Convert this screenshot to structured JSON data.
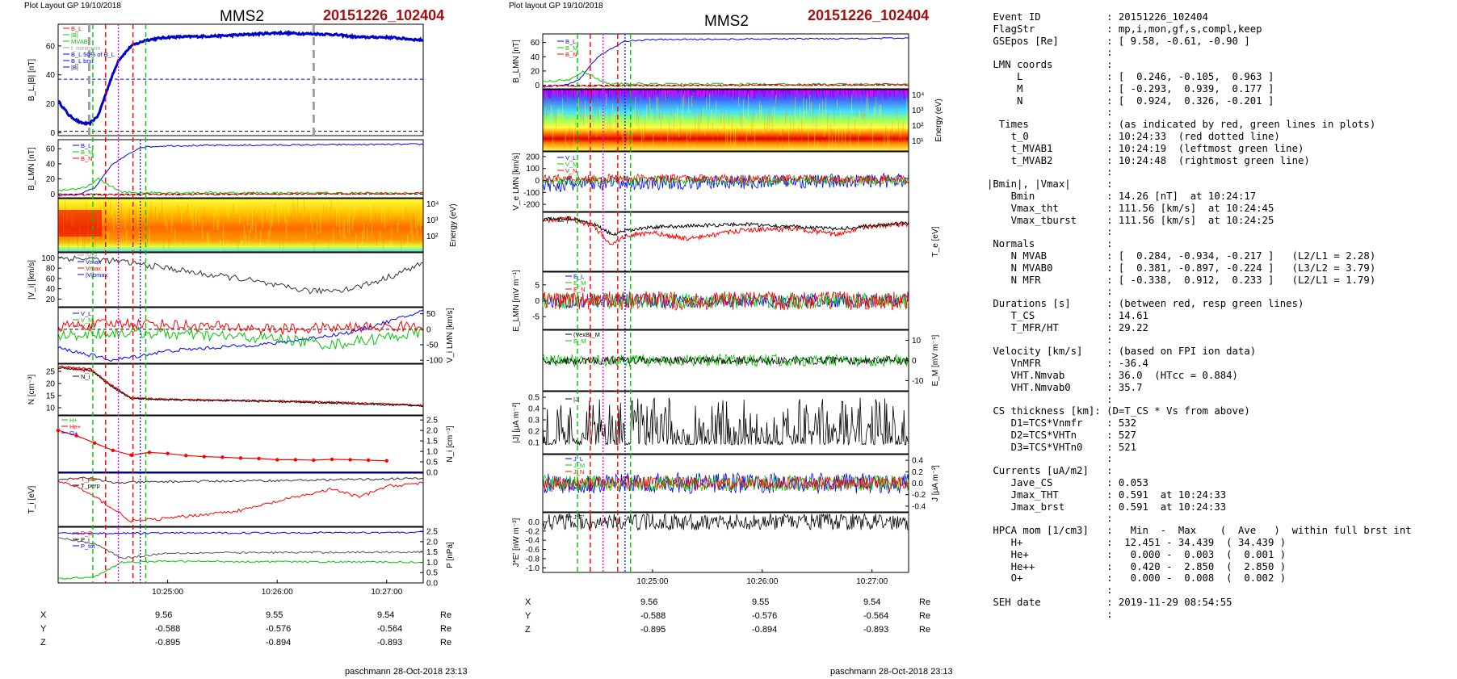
{
  "left_panel": {
    "header": "Plot Layout GP 19/10/2018",
    "spacecraft": "MMS2",
    "event": "20151226_102404",
    "footer": "paschmann 28-Oct-2018 23:13",
    "panels": [
      {
        "id": "B_L_abs",
        "ylabel": "B_L,|B| [nT]",
        "ylim": [
          -2,
          75
        ],
        "yticks": [
          "0",
          "20",
          "40",
          "60"
        ],
        "side": "left",
        "legend": [
          "B_L",
          "|B|",
          "MVAB",
          "t_minimum",
          "B_L 50% of B_L",
          "B_L brst",
          "|B|"
        ]
      },
      {
        "id": "B_LMN",
        "ylabel": "B_LMN [nT]",
        "ylim": [
          -5,
          72
        ],
        "yticks": [
          "0",
          "20",
          "40",
          "60"
        ],
        "side": "left",
        "legend": [
          "B_L",
          "B_M",
          "B_N"
        ]
      },
      {
        "id": "ion_spectrogram",
        "ylabel": "Energy (eV)",
        "yticks": [
          "10⁴",
          "10³",
          "10²"
        ],
        "side": "right"
      },
      {
        "id": "V_abs",
        "ylabel": "|V_i| [km/s]",
        "ylim": [
          5,
          110
        ],
        "yticks": [
          "20",
          "40",
          "60",
          "80",
          "100"
        ],
        "side": "left",
        "legend": [
          "|V_i|",
          "Vmax",
          "Vmax",
          "|V|bmax"
        ]
      },
      {
        "id": "V_LMN",
        "ylabel": "V_i LMN [km/s]",
        "ylim": [
          -110,
          70
        ],
        "yticks": [
          "50",
          "0",
          "-50",
          "-100"
        ],
        "side": "right",
        "legend": [
          "V_L",
          "V_M",
          "V_N"
        ]
      },
      {
        "id": "N",
        "ylabel": "N [cm⁻³]",
        "ylim": [
          7,
          28
        ],
        "yticks": [
          "25",
          "20",
          "15",
          "10"
        ],
        "side": "left",
        "legend": [
          "N_e",
          "N_i"
        ]
      },
      {
        "id": "N_hpca",
        "ylabel": "N_i [cm⁻³]",
        "ylim": [
          0,
          2.7
        ],
        "yticks": [
          "2.5",
          "2.0",
          "1.5",
          "1.0",
          "0.5",
          "0.0"
        ],
        "side": "right",
        "legend": [
          "H+",
          "He+",
          "O+"
        ]
      },
      {
        "id": "T",
        "ylabel": "T_i [eV]",
        "ylim": [
          0,
          1
        ],
        "yticks": [],
        "side": "left",
        "legend": [
          "T_par",
          "T_perp"
        ]
      },
      {
        "id": "P",
        "ylabel": "P [nPa]",
        "ylim": [
          0,
          2.7
        ],
        "yticks": [
          "2.5",
          "2.0",
          "1.5",
          "1.0",
          "0.5",
          "0.0"
        ],
        "side": "right",
        "legend": [
          "P_B",
          "P_i",
          "P_tot"
        ]
      }
    ],
    "time_ticks": [
      "10:25:00",
      "10:26:00",
      "10:27:00"
    ],
    "coords": [
      {
        "label": "X",
        "values": [
          "9.56",
          "9.55",
          "9.54"
        ],
        "unit": "Re"
      },
      {
        "label": "Y",
        "values": [
          "-0.588",
          "-0.576",
          "-0.564"
        ],
        "unit": "Re"
      },
      {
        "label": "Z",
        "values": [
          "-0.895",
          "-0.894",
          "-0.893"
        ],
        "unit": "Re"
      }
    ]
  },
  "right_panel": {
    "header": "Plot layout GP 19/10/2018",
    "spacecraft": "MMS2",
    "event": "20151226_102404",
    "footer": "paschmann 28-Oct-2018 23:13",
    "panels": [
      {
        "id": "B_LMN",
        "ylabel": "B_LMN [nT]",
        "ylim": [
          -5,
          72
        ],
        "yticks": [
          "60",
          "40",
          "20",
          "0"
        ],
        "side": "left",
        "legend": [
          "B_L",
          "B_M",
          "B_N"
        ]
      },
      {
        "id": "elec_spectrogram",
        "ylabel": "Energy (eV)",
        "yticks": [
          "10⁴",
          "10³",
          "10²",
          "10¹"
        ],
        "side": "right"
      },
      {
        "id": "Ve_LMN",
        "ylabel": "V_e LMN [km/s]",
        "ylim": [
          -260,
          240
        ],
        "yticks": [
          "200",
          "100",
          "0",
          "-100",
          "-200"
        ],
        "side": "left",
        "legend": [
          "V_L",
          "V_M",
          "V_N"
        ]
      },
      {
        "id": "Te",
        "ylabel": "T_e [eV]",
        "ylim": [
          0,
          1
        ],
        "yticks": [],
        "side": "right",
        "legend": [
          "T"
        ]
      },
      {
        "id": "E_LMN",
        "ylabel": "E_LMN [mV m⁻¹]",
        "ylim": [
          -9,
          9
        ],
        "yticks": [
          "5",
          "0",
          "-5"
        ],
        "side": "left",
        "legend": [
          "E_L",
          "E_M",
          "E_N"
        ]
      },
      {
        "id": "E_M",
        "ylabel": "E_M [mV m⁻¹]",
        "ylim": [
          -15,
          15
        ],
        "yticks": [
          "10",
          "0",
          "-10"
        ],
        "side": "right",
        "legend": [
          "(VexB)_M",
          "E_M"
        ]
      },
      {
        "id": "J_abs",
        "ylabel": "|J| [μA m⁻²]",
        "ylim": [
          0,
          0.55
        ],
        "yticks": [
          "0.5",
          "0.4",
          "0.3",
          "0.2",
          "0.1"
        ],
        "side": "left",
        "legend": [
          "|J|"
        ]
      },
      {
        "id": "J",
        "ylabel": "J [μA m⁻²]",
        "ylim": [
          -0.5,
          0.5
        ],
        "yticks": [
          "0.4",
          "0.2",
          "0.0",
          "-0.2",
          "-0.4"
        ],
        "side": "right",
        "legend": [
          "J_L",
          "J_M",
          "J_N"
        ]
      },
      {
        "id": "JE",
        "ylabel": "J*E' [nW m⁻³]",
        "ylim": [
          -1.1,
          0.2
        ],
        "yticks": [
          "0.0",
          "-0.2",
          "-0.4",
          "-0.6",
          "-0.8",
          "-1.0"
        ],
        "side": "left",
        "legend": [
          "J*E'"
        ]
      }
    ],
    "time_ticks": [
      "10:25:00",
      "10:26:00",
      "10:27:00"
    ],
    "coords": [
      {
        "label": "X",
        "values": [
          "9.56",
          "9.55",
          "9.54"
        ],
        "unit": "Re"
      },
      {
        "label": "Y",
        "values": [
          "-0.588",
          "-0.576",
          "-0.564"
        ],
        "unit": "Re"
      },
      {
        "label": "Z",
        "values": [
          "-0.895",
          "-0.894",
          "-0.893"
        ],
        "unit": "Re"
      }
    ]
  },
  "colors": {
    "red": "#ff0000",
    "green": "#00c800",
    "blue": "#0000ff",
    "black": "#000000",
    "magenta": "#ff00ff",
    "gray": "#a0a0a0",
    "event": "#a01010"
  },
  "chart_data": [
    {
      "type": "line",
      "title": "MMS2 20151226_102404",
      "xlabel": "",
      "x_ticks": [
        "10:25:00",
        "10:26:00",
        "10:27:00"
      ],
      "series": [
        {
          "name": "B_L",
          "x": [
            "10:24:00",
            "10:24:10",
            "10:24:17",
            "10:24:25",
            "10:24:33",
            "10:24:40",
            "10:24:48",
            "10:25:00",
            "10:25:30",
            "10:26:00",
            "10:26:30",
            "10:27:00",
            "10:27:15"
          ],
          "values": [
            22,
            10,
            6,
            20,
            45,
            60,
            64,
            66,
            66,
            68,
            66,
            66,
            65
          ]
        }
      ],
      "ylabel": "B_L,|B| [nT]",
      "ylim": [
        0,
        75
      ]
    },
    {
      "type": "line",
      "title": "",
      "series": [
        {
          "name": "N_i",
          "x": [
            "10:24:00",
            "10:24:20",
            "10:24:33",
            "10:24:48",
            "10:25:00",
            "10:25:30",
            "10:26:00",
            "10:26:30",
            "10:27:00",
            "10:27:15"
          ],
          "values": [
            27,
            26,
            20,
            14,
            13.5,
            13,
            12.5,
            12,
            11,
            10.5
          ]
        }
      ],
      "ylabel": "N [cm⁻³]",
      "ylim": [
        7,
        28
      ]
    },
    {
      "type": "line",
      "title": "",
      "series": [
        {
          "name": "H+",
          "x": [
            "10:24:00",
            "10:24:20",
            "10:24:33",
            "10:24:45",
            "10:25:00",
            "10:25:30",
            "10:26:00",
            "10:26:30",
            "10:27:00"
          ],
          "values": [
            2.0,
            1.6,
            1.2,
            0.85,
            0.95,
            0.75,
            0.6,
            0.6,
            0.55
          ]
        }
      ],
      "ylabel": "N_i [cm⁻³]",
      "ylim": [
        0,
        2.7
      ]
    }
  ],
  "info_lines": [
    " Event ID           : 20151226_102404",
    " FlagStr            : mp,i,mon,gf,s,compl,keep",
    " GSEpos [Re]        : [ 9.58, -0.61, -0.90 ]",
    "                    :",
    " LMN coords         :",
    "     L              : [  0.246, -0.105,  0.963 ]",
    "     M              : [ -0.293,  0.939,  0.177 ]",
    "     N              : [  0.924,  0.326, -0.201 ]",
    "                    :",
    "  Times             : (as indicated by red, green lines in plots)",
    "    t_0             : 10:24:33  (red dotted line)",
    "    t_MVAB1         : 10:24:19  (leftmost green line)",
    "    t_MVAB2         : 10:24:48  (rightmost green line)",
    "                    :",
    "|Bmin|, |Vmax|      :",
    "    Bmin            : 14.26 [nT]  at 10:24:17",
    "    Vmax_tht        : 111.56 [km/s]  at 10:24:45",
    "    Vmax_tburst     : 111.56 [km/s]  at 10:24:25",
    "                    :",
    " Normals            :",
    "    N MVAB          : [  0.284, -0.934, -0.217 ]   (L2/L1 = 2.28)",
    "    N MVAB0         : [  0.381, -0.897, -0.224 ]   (L3/L2 = 3.79)",
    "    N MFR           : [ -0.338,  0.912,  0.233 ]   (L2/L1 = 1.79)",
    "                    :",
    " Durations [s]      : (between red, resp green lines)",
    "    T_CS            : 14.61",
    "    T_MFR/HT        : 29.22",
    "                    :",
    " Velocity [km/s]    : (based on FPI ion data)",
    "    VnMFR           : -36.4",
    "    VHT.Nmvab       : 36.0  (HTcc = 0.884)",
    "    VHT.Nmvab0      : 35.7",
    "                    :",
    " CS thickness [km]: (D=T_CS * Vs from above)",
    "    D1=TCS*Vnmfr    : 532",
    "    D2=TCS*VHTn     : 527",
    "    D3=TCS*VHTn0    : 521",
    "                    :",
    " Currents [uA/m2]   :",
    "    Jave_CS         : 0.053",
    "    Jmax_THT        : 0.591  at 10:24:33",
    "    Jmax_brst       : 0.591  at 10:24:33",
    "                    :",
    " HPCA mom [1/cm3]   :   Min  -  Max    (  Ave   )  within full brst int",
    "    H+              :  12.451 - 34.439  ( 34.439 )",
    "    He+             :   0.000 -  0.003  (  0.001 )",
    "    He++            :   0.420 -  2.850  (  2.850 )",
    "    O+              :   0.000 -  0.008  (  0.002 )",
    "                    :",
    " SEH date           : 2019-11-29 08:54:55",
    "                    :"
  ]
}
